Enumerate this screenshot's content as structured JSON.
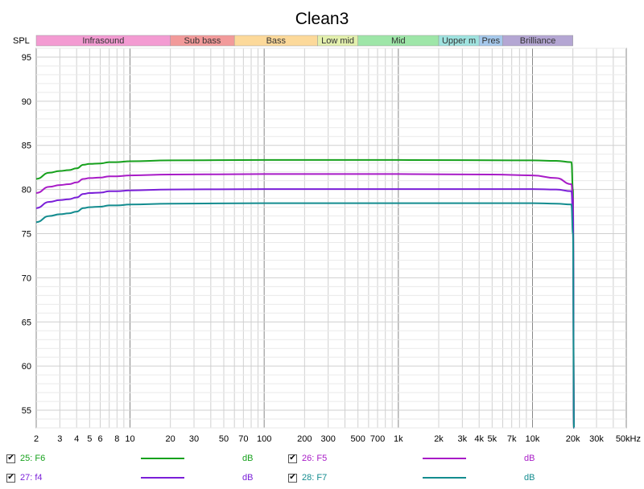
{
  "chart_data": {
    "type": "line",
    "title": "Clean3",
    "ylabel": "SPL",
    "x_scale": "log",
    "xlim": [
      2,
      50000
    ],
    "ylim": [
      53,
      96
    ],
    "y_ticks": [
      95,
      90,
      85,
      80,
      75,
      70,
      65,
      60,
      55
    ],
    "x_ticks": [
      {
        "v": 2,
        "label": "2"
      },
      {
        "v": 3,
        "label": "3"
      },
      {
        "v": 4,
        "label": "4"
      },
      {
        "v": 5,
        "label": "5"
      },
      {
        "v": 6,
        "label": "6"
      },
      {
        "v": 8,
        "label": "8"
      },
      {
        "v": 10,
        "label": "10"
      },
      {
        "v": 20,
        "label": "20"
      },
      {
        "v": 30,
        "label": "30"
      },
      {
        "v": 50,
        "label": "50"
      },
      {
        "v": 70,
        "label": "70"
      },
      {
        "v": 100,
        "label": "100"
      },
      {
        "v": 200,
        "label": "200"
      },
      {
        "v": 300,
        "label": "300"
      },
      {
        "v": 500,
        "label": "500"
      },
      {
        "v": 700,
        "label": "700"
      },
      {
        "v": 1000,
        "label": "1k"
      },
      {
        "v": 2000,
        "label": "2k"
      },
      {
        "v": 3000,
        "label": "3k"
      },
      {
        "v": 4000,
        "label": "4k"
      },
      {
        "v": 5000,
        "label": "5k"
      },
      {
        "v": 7000,
        "label": "7k"
      },
      {
        "v": 10000,
        "label": "10k"
      },
      {
        "v": 20000,
        "label": "20k"
      },
      {
        "v": 30000,
        "label": "30k"
      },
      {
        "v": 50000,
        "label": "50kHz"
      }
    ],
    "bands": [
      {
        "label": "Infrasound",
        "from": 2,
        "to": 20,
        "color": "#f39bd2"
      },
      {
        "label": "Sub bass",
        "from": 20,
        "to": 60,
        "color": "#f29a9a"
      },
      {
        "label": "Bass",
        "from": 60,
        "to": 250,
        "color": "#fcd99a"
      },
      {
        "label": "Low mid",
        "from": 250,
        "to": 500,
        "color": "#e3f0ad"
      },
      {
        "label": "Mid",
        "from": 500,
        "to": 2000,
        "color": "#9ee6a8"
      },
      {
        "label": "Upper m",
        "from": 2000,
        "to": 4000,
        "color": "#9fe3e0"
      },
      {
        "label": "Pres",
        "from": 4000,
        "to": 6000,
        "color": "#a6c9ec"
      },
      {
        "label": "Brilliance",
        "from": 6000,
        "to": 20000,
        "color": "#b4a6d3"
      }
    ],
    "series": [
      {
        "name": "25: F6",
        "color": "#17a11d",
        "x": [
          2,
          2.5,
          3,
          3.5,
          4,
          4.5,
          5,
          6,
          7,
          8,
          10,
          20,
          100,
          1000,
          10000,
          15000,
          19500,
          20000,
          20400
        ],
        "y": [
          81.2,
          81.9,
          82.1,
          82.2,
          82.4,
          82.8,
          82.9,
          82.95,
          83.1,
          83.1,
          83.2,
          83.3,
          83.35,
          83.35,
          83.3,
          83.25,
          83.1,
          80.0,
          53.0
        ]
      },
      {
        "name": "26: F5",
        "color": "#a81bc7",
        "x": [
          2,
          2.5,
          3,
          3.5,
          4,
          4.5,
          5,
          6,
          7,
          8,
          10,
          20,
          100,
          1000,
          5000,
          10000,
          15000,
          19500,
          20000,
          20400
        ],
        "y": [
          79.6,
          80.3,
          80.5,
          80.6,
          80.8,
          81.2,
          81.3,
          81.35,
          81.5,
          81.5,
          81.6,
          81.7,
          81.75,
          81.75,
          81.7,
          81.6,
          81.3,
          80.6,
          79.0,
          53.0
        ]
      },
      {
        "name": "27: f4",
        "color": "#7a1fd8",
        "x": [
          2,
          2.5,
          3,
          3.5,
          4,
          4.5,
          5,
          6,
          7,
          8,
          10,
          20,
          100,
          1000,
          10000,
          15000,
          19500,
          20000,
          20400
        ],
        "y": [
          77.9,
          78.6,
          78.8,
          78.9,
          79.1,
          79.5,
          79.6,
          79.65,
          79.8,
          79.8,
          79.9,
          80.0,
          80.05,
          80.05,
          80.05,
          80.0,
          79.8,
          77.0,
          53.0
        ]
      },
      {
        "name": "28: F7",
        "color": "#138c8f",
        "x": [
          2,
          2.5,
          3,
          3.5,
          4,
          4.5,
          5,
          6,
          7,
          8,
          10,
          20,
          100,
          1000,
          10000,
          15000,
          19500,
          20000,
          20400
        ],
        "y": [
          76.3,
          77.0,
          77.2,
          77.3,
          77.5,
          77.9,
          78.0,
          78.05,
          78.2,
          78.2,
          78.3,
          78.4,
          78.45,
          78.45,
          78.45,
          78.4,
          78.3,
          75.0,
          53.0
        ]
      }
    ],
    "legend": [
      {
        "name": "25: F6",
        "color": "#17a11d",
        "unit": "dB",
        "checked": true
      },
      {
        "name": "26: F5",
        "color": "#a81bc7",
        "unit": "dB",
        "checked": true
      },
      {
        "name": "27: f4",
        "color": "#7a1fd8",
        "unit": "dB",
        "checked": true
      },
      {
        "name": "28: F7",
        "color": "#138c8f",
        "unit": "dB",
        "checked": true
      }
    ],
    "grid": true
  }
}
